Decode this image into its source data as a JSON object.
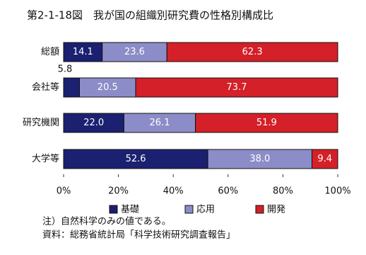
{
  "chart_data": {
    "type": "stacked-barh",
    "title": "第2-1-18図　我が国の組織別研究費の性格別構成比",
    "categories": [
      "総額",
      "会社等",
      "研究機関",
      "大学等"
    ],
    "series": [
      {
        "name": "基礎",
        "color": "#1b2070",
        "values": [
          14.1,
          5.8,
          22.0,
          52.6
        ],
        "value_labels": [
          "14.1",
          "5.8",
          "22.0",
          "52.6"
        ]
      },
      {
        "name": "応用",
        "color": "#8c8cc8",
        "values": [
          23.6,
          20.5,
          26.1,
          38.0
        ],
        "value_labels": [
          "23.6",
          "20.5",
          "26.1",
          "38.0"
        ]
      },
      {
        "name": "開発",
        "color": "#d42028",
        "values": [
          62.3,
          73.7,
          51.9,
          9.4
        ],
        "value_labels": [
          "62.3",
          "73.7",
          "51.9",
          "9.4"
        ]
      }
    ],
    "xlim": [
      0,
      100
    ],
    "xticks": [
      {
        "value": 0,
        "label": "0%"
      },
      {
        "value": 20,
        "label": "20%"
      },
      {
        "value": 40,
        "label": "40%"
      },
      {
        "value": 60,
        "label": "60%"
      },
      {
        "value": 80,
        "label": "80%"
      },
      {
        "value": 100,
        "label": "100%"
      }
    ],
    "notes": [
      "注）自然科学のみの値である。",
      "資料：総務省統計局「科学技術研究調査報告」"
    ]
  }
}
